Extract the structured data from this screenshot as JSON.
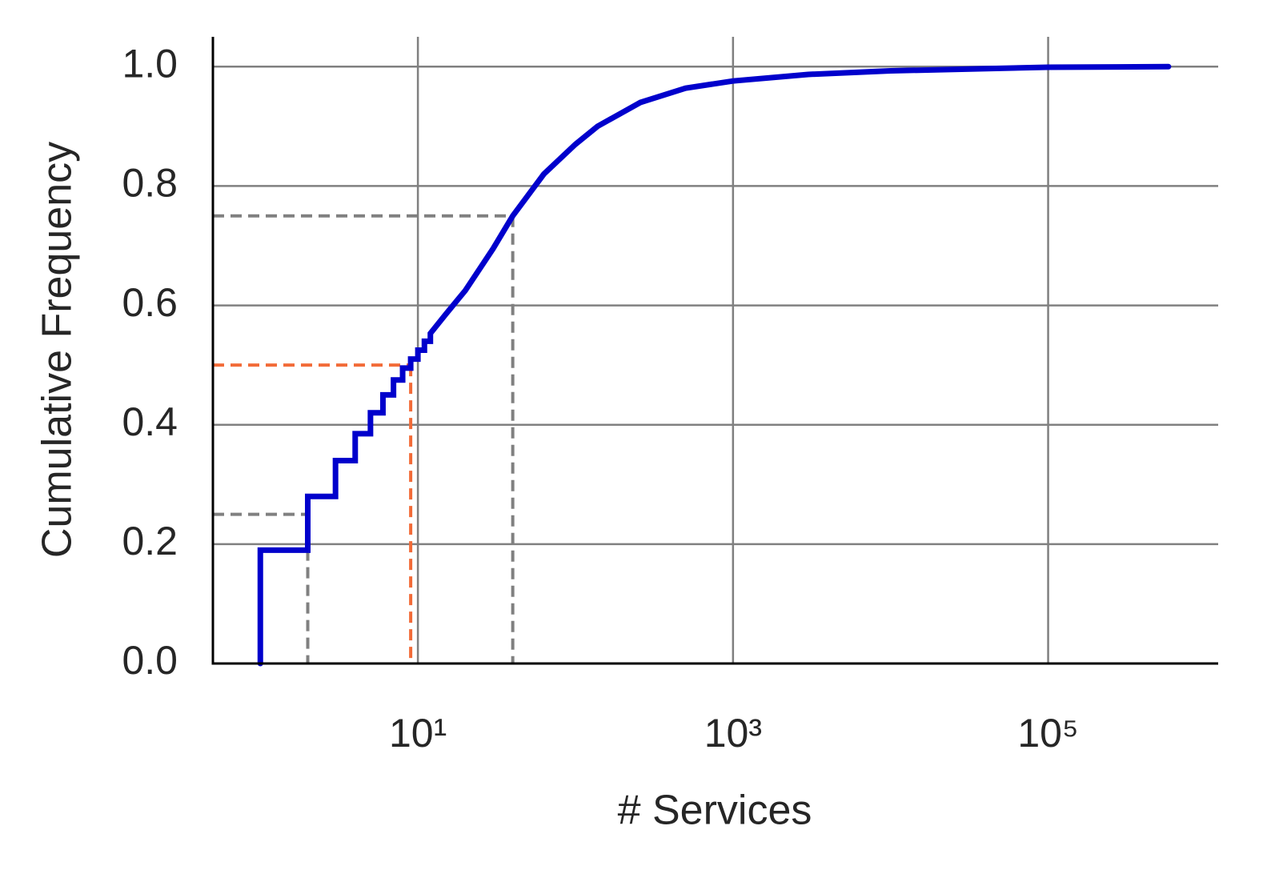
{
  "chart_data": {
    "type": "line",
    "x_label": "# Services",
    "y_label": "Cumulative Frequency",
    "x_scale": "log",
    "xlim": [
      0.5,
      1200000
    ],
    "ylim": [
      0,
      1.05
    ],
    "xticks": [
      {
        "value": 10,
        "label": "10¹"
      },
      {
        "value": 1000,
        "label": "10³"
      },
      {
        "value": 100000,
        "label": "10⁵"
      }
    ],
    "yticks": [
      {
        "value": 0,
        "label": "0.0"
      },
      0.2,
      0.4,
      0.6,
      0.8,
      {
        "value": 1,
        "label": "1.0"
      }
    ],
    "grid": true,
    "series": [
      {
        "color": "#0000cc",
        "x": [
          1,
          1,
          2,
          2,
          3,
          3,
          4,
          4,
          5,
          5,
          6,
          6,
          7,
          7,
          8,
          8,
          9,
          9,
          10,
          10,
          11,
          11,
          12,
          12,
          15,
          20,
          30,
          40,
          63,
          100,
          138,
          258,
          500,
          1000,
          3000,
          10000,
          100000,
          580000
        ],
        "values": [
          0,
          0.19,
          0.19,
          0.28,
          0.28,
          0.34,
          0.34,
          0.385,
          0.385,
          0.42,
          0.42,
          0.45,
          0.45,
          0.475,
          0.475,
          0.495,
          0.495,
          0.51,
          0.51,
          0.525,
          0.525,
          0.54,
          0.54,
          0.553,
          0.585,
          0.625,
          0.695,
          0.75,
          0.82,
          0.87,
          0.9,
          0.94,
          0.964,
          0.976,
          0.987,
          0.993,
          0.999,
          1.0
        ]
      }
    ],
    "reference_lines": [
      {
        "x": 2,
        "y": 0.25,
        "color": "#808080"
      },
      {
        "x": 9,
        "y": 0.5,
        "color": "#f26b38"
      },
      {
        "x": 40,
        "y": 0.75,
        "color": "#808080"
      }
    ]
  }
}
